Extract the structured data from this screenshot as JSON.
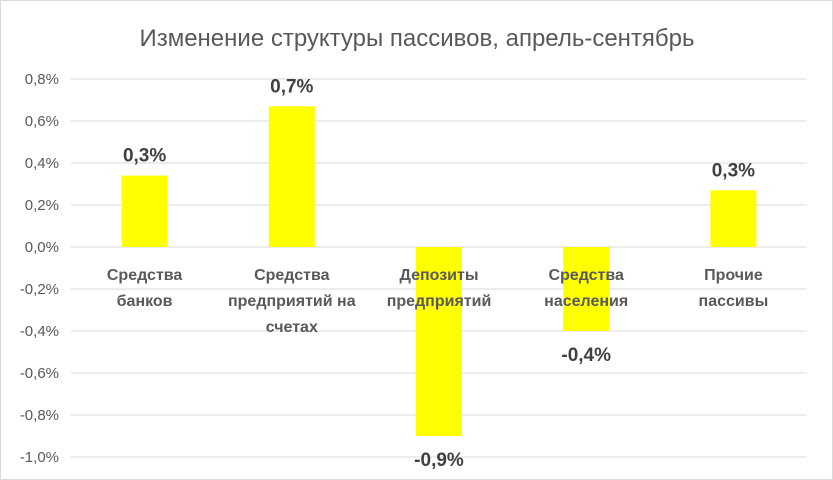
{
  "chart_data": {
    "type": "bar",
    "title": "Изменение структуры пассивов, апрель-сентябрь",
    "xlabel": "",
    "ylabel": "",
    "ylim": [
      -1.0,
      0.8
    ],
    "ytick_values": [
      0.8,
      0.6,
      0.4,
      0.2,
      0.0,
      -0.2,
      -0.4,
      -0.6,
      -0.8,
      -1.0
    ],
    "ytick_labels": [
      "0,8%",
      "0,6%",
      "0,4%",
      "0,2%",
      "0,0%",
      "-0,2%",
      "-0,4%",
      "-0,6%",
      "-0,8%",
      "-1,0%"
    ],
    "categories": [
      [
        "Средства",
        "банков"
      ],
      [
        "Средства",
        "предприятий на",
        "счетах"
      ],
      [
        "Депозиты",
        "предприятий"
      ],
      [
        "Средства",
        "населения"
      ],
      [
        "Прочие",
        "пассивы"
      ]
    ],
    "values": [
      0.34,
      0.67,
      -0.9,
      -0.4,
      0.27
    ],
    "data_labels": [
      "0,3%",
      "0,7%",
      "-0,9%",
      "-0,4%",
      "0,3%"
    ],
    "grid": true,
    "legend": "none",
    "bar_color": "#ffff00",
    "grid_color": "#d9d9d9",
    "text_color": "#595959"
  }
}
